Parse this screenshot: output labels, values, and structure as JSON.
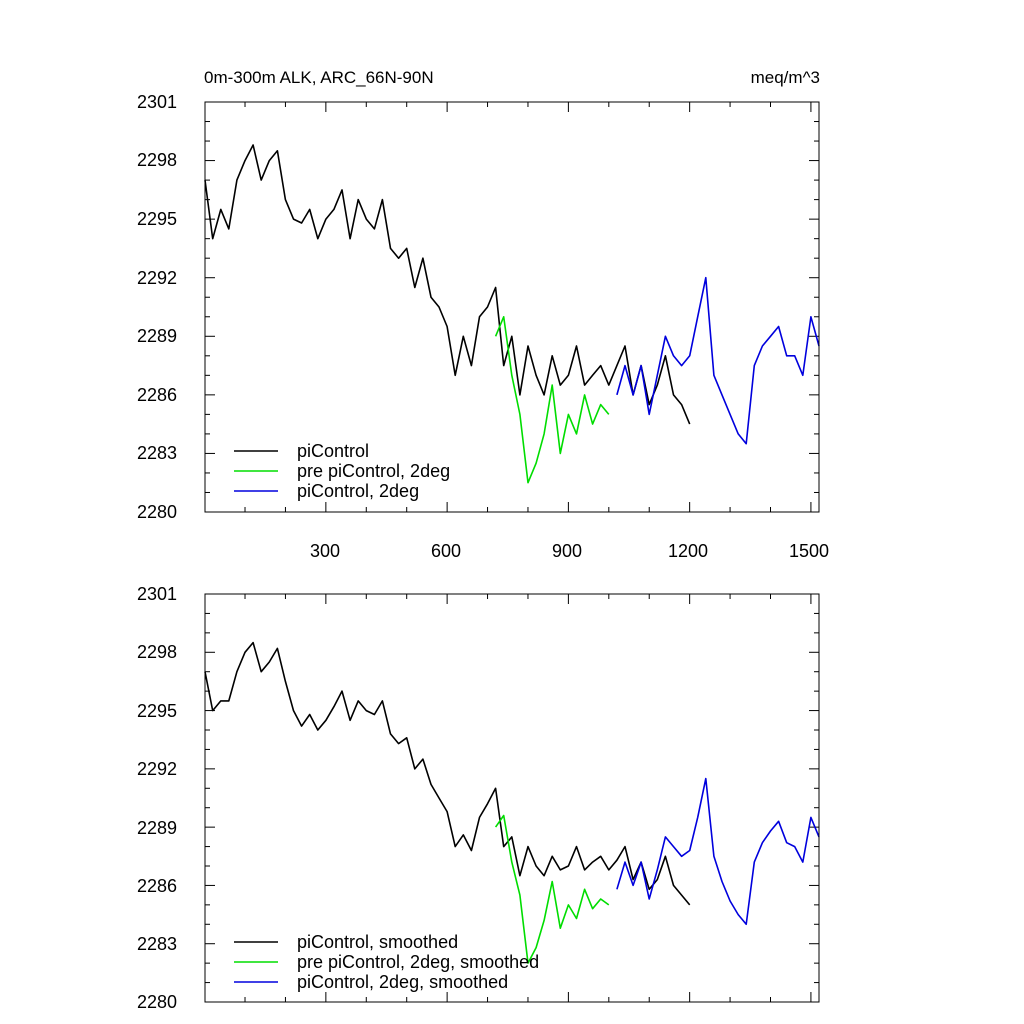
{
  "chart_data": [
    {
      "type": "line",
      "title": "0m-300m ALK, ARC_66N-90N",
      "units": "meq/m^3",
      "xlim": [
        1,
        1520
      ],
      "ylim": [
        2280,
        2301
      ],
      "x_ticks": [
        300,
        600,
        900,
        1200,
        1500
      ],
      "x_tick_labels": [
        "300",
        "600",
        "900",
        "1200",
        "1500"
      ],
      "y_ticks": [
        2280,
        2283,
        2286,
        2289,
        2292,
        2295,
        2298,
        2301
      ],
      "y_tick_labels": [
        "2280",
        "2283",
        "2286",
        "2289",
        "2292",
        "2295",
        "2298",
        "2301"
      ],
      "legend_position": "bottom-left",
      "series": [
        {
          "name": "piControl",
          "color": "#000000",
          "x": [
            1,
            20,
            40,
            60,
            80,
            100,
            120,
            140,
            160,
            180,
            200,
            220,
            240,
            260,
            280,
            300,
            320,
            340,
            360,
            380,
            400,
            420,
            440,
            460,
            480,
            500,
            520,
            540,
            560,
            580,
            600,
            620,
            640,
            660,
            680,
            700,
            720,
            740,
            760,
            780,
            800,
            820,
            840,
            860,
            880,
            900,
            920,
            940,
            960,
            980,
            1000,
            1020,
            1040,
            1060,
            1080,
            1100,
            1120,
            1140,
            1160,
            1180,
            1200
          ],
          "values": [
            2297.0,
            2294.0,
            2295.5,
            2294.5,
            2297.0,
            2298.0,
            2298.8,
            2297.0,
            2298.0,
            2298.5,
            2296.0,
            2295.0,
            2294.8,
            2295.5,
            2294.0,
            2295.0,
            2295.5,
            2296.5,
            2294.0,
            2296.0,
            2295.0,
            2294.5,
            2296.0,
            2293.5,
            2293.0,
            2293.5,
            2291.5,
            2293.0,
            2291.0,
            2290.5,
            2289.5,
            2287.0,
            2289.0,
            2287.5,
            2290.0,
            2290.5,
            2291.5,
            2287.5,
            2289.0,
            2286.0,
            2288.5,
            2287.0,
            2286.0,
            2288.0,
            2286.5,
            2287.0,
            2288.5,
            2286.5,
            2287.0,
            2287.5,
            2286.5,
            2287.5,
            2288.5,
            2286.0,
            2287.5,
            2285.5,
            2286.5,
            2288.0,
            2286.0,
            2285.5,
            2284.5
          ]
        },
        {
          "name": "pre piControl, 2deg",
          "color": "#00dd00",
          "x": [
            720,
            740,
            760,
            780,
            800,
            820,
            840,
            860,
            880,
            900,
            920,
            940,
            960,
            980,
            1000
          ],
          "values": [
            2289.0,
            2290.0,
            2287.0,
            2285.0,
            2281.5,
            2282.5,
            2284.0,
            2286.5,
            2283.0,
            2285.0,
            2284.0,
            2286.0,
            2284.5,
            2285.5,
            2285.0
          ]
        },
        {
          "name": "piControl, 2deg",
          "color": "#0000dd",
          "x": [
            1020,
            1040,
            1060,
            1080,
            1100,
            1120,
            1140,
            1160,
            1180,
            1200,
            1220,
            1240,
            1260,
            1280,
            1300,
            1320,
            1340,
            1360,
            1380,
            1400,
            1420,
            1440,
            1460,
            1480,
            1500,
            1520
          ],
          "values": [
            2286.0,
            2287.5,
            2286.0,
            2287.5,
            2285.0,
            2287.0,
            2289.0,
            2288.0,
            2287.5,
            2288.0,
            2290.0,
            2292.0,
            2287.0,
            2286.0,
            2285.0,
            2284.0,
            2283.5,
            2287.5,
            2288.5,
            2289.0,
            2289.5,
            2288.0,
            2288.0,
            2287.0,
            2290.0,
            2288.5
          ]
        }
      ]
    },
    {
      "type": "line",
      "xlim": [
        1,
        1520
      ],
      "ylim": [
        2280,
        2301
      ],
      "x_ticks": [
        300,
        600,
        900,
        1200,
        1500
      ],
      "y_ticks": [
        2280,
        2283,
        2286,
        2289,
        2292,
        2295,
        2298,
        2301
      ],
      "y_tick_labels": [
        "2280",
        "2283",
        "2286",
        "2289",
        "2292",
        "2295",
        "2298",
        "2301"
      ],
      "legend_position": "bottom-left",
      "series": [
        {
          "name": "piControl, smoothed",
          "color": "#000000",
          "x": [
            1,
            20,
            40,
            60,
            80,
            100,
            120,
            140,
            160,
            180,
            200,
            220,
            240,
            260,
            280,
            300,
            320,
            340,
            360,
            380,
            400,
            420,
            440,
            460,
            480,
            500,
            520,
            540,
            560,
            580,
            600,
            620,
            640,
            660,
            680,
            700,
            720,
            740,
            760,
            780,
            800,
            820,
            840,
            860,
            880,
            900,
            920,
            940,
            960,
            980,
            1000,
            1020,
            1040,
            1060,
            1080,
            1100,
            1120,
            1140,
            1160,
            1180,
            1200
          ],
          "values": [
            2297.0,
            2295.0,
            2295.5,
            2295.5,
            2297.0,
            2298.0,
            2298.5,
            2297.0,
            2297.5,
            2298.2,
            2296.5,
            2295.0,
            2294.2,
            2294.8,
            2294.0,
            2294.5,
            2295.2,
            2296.0,
            2294.5,
            2295.5,
            2295.0,
            2294.8,
            2295.5,
            2293.8,
            2293.3,
            2293.6,
            2292.0,
            2292.5,
            2291.2,
            2290.5,
            2289.8,
            2288.0,
            2288.6,
            2287.8,
            2289.5,
            2290.2,
            2291.0,
            2288.0,
            2288.5,
            2286.5,
            2288.0,
            2287.0,
            2286.5,
            2287.5,
            2286.8,
            2287.0,
            2288.0,
            2286.8,
            2287.2,
            2287.5,
            2286.8,
            2287.3,
            2288.0,
            2286.3,
            2287.2,
            2285.8,
            2286.3,
            2287.5,
            2286.0,
            2285.5,
            2285.0
          ]
        },
        {
          "name": "pre piControl, 2deg, smoothed",
          "color": "#00dd00",
          "x": [
            720,
            740,
            760,
            780,
            800,
            820,
            840,
            860,
            880,
            900,
            920,
            940,
            960,
            980,
            1000
          ],
          "values": [
            2289.0,
            2289.6,
            2287.2,
            2285.5,
            2282.0,
            2282.8,
            2284.2,
            2286.2,
            2283.8,
            2285.0,
            2284.3,
            2285.8,
            2284.8,
            2285.3,
            2285.0
          ]
        },
        {
          "name": "piControl, 2deg, smoothed",
          "color": "#0000dd",
          "x": [
            1020,
            1040,
            1060,
            1080,
            1100,
            1120,
            1140,
            1160,
            1180,
            1200,
            1220,
            1240,
            1260,
            1280,
            1300,
            1320,
            1340,
            1360,
            1380,
            1400,
            1420,
            1440,
            1460,
            1480,
            1500,
            1520
          ],
          "values": [
            2285.8,
            2287.2,
            2286.0,
            2287.2,
            2285.3,
            2286.8,
            2288.5,
            2288.0,
            2287.5,
            2287.8,
            2289.5,
            2291.5,
            2287.5,
            2286.2,
            2285.2,
            2284.5,
            2284.0,
            2287.2,
            2288.2,
            2288.8,
            2289.3,
            2288.2,
            2288.0,
            2287.2,
            2289.5,
            2288.5
          ]
        }
      ]
    }
  ]
}
